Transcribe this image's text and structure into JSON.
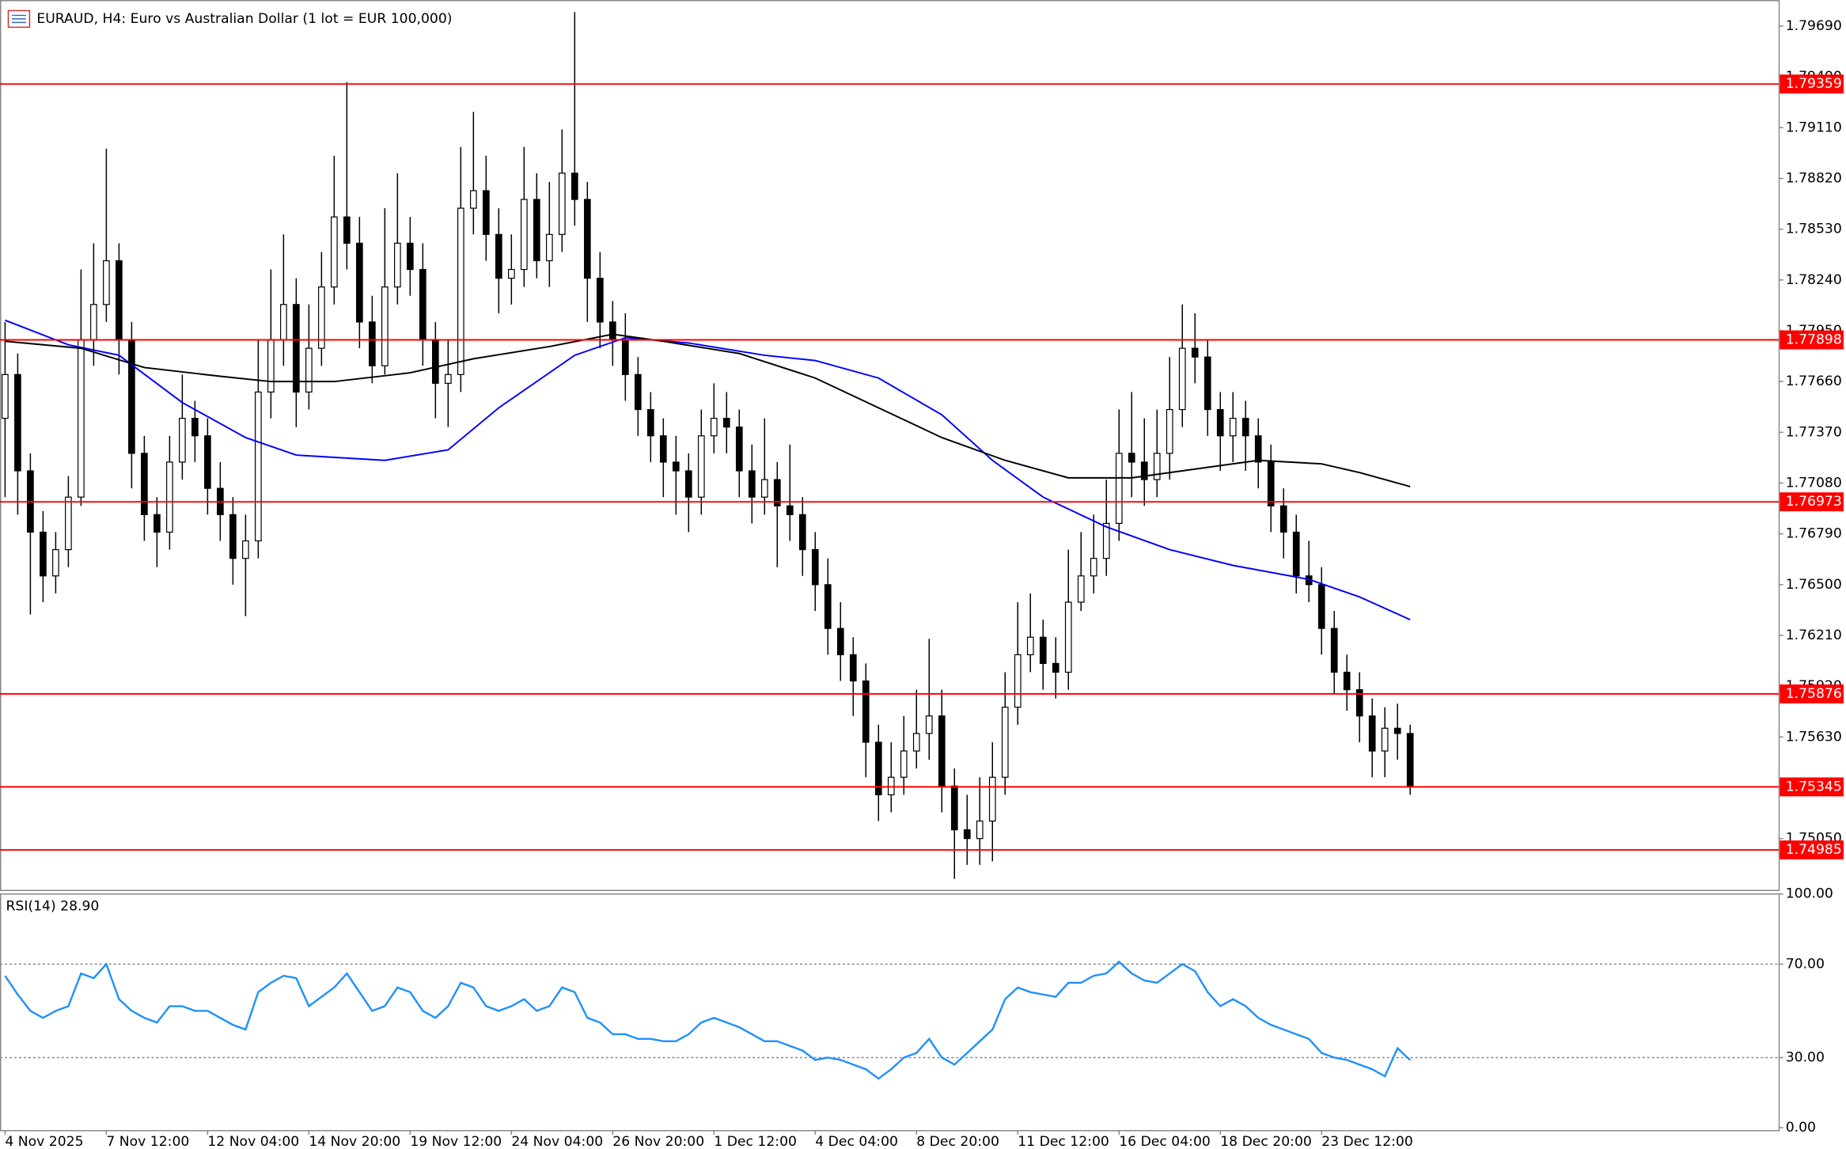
{
  "chart_data": [
    {
      "type": "candlestick",
      "title": "EURAUD, H4:  Euro vs Australian Dollar (1 lot = EUR 100,000)",
      "open": [
        1.7745,
        1.777,
        1.7715,
        1.768,
        1.7655,
        1.767,
        1.77,
        1.779,
        1.781,
        1.7835,
        1.779,
        1.7725,
        1.769,
        1.768,
        1.772,
        1.7745,
        1.7735,
        1.7705,
        1.769,
        1.7665,
        1.7675,
        1.776,
        1.779,
        1.781,
        1.776,
        1.7785,
        1.782,
        1.786,
        1.7845,
        1.78,
        1.7775,
        1.782,
        1.7845,
        1.783,
        1.779,
        1.7765,
        1.777,
        1.7865,
        1.7875,
        1.785,
        1.7825,
        1.783,
        1.787,
        1.7835,
        1.785,
        1.7885,
        1.787,
        1.7825,
        1.78,
        1.779,
        1.777,
        1.775,
        1.7735,
        1.772,
        1.7715,
        1.77,
        1.7735,
        1.7745,
        1.774,
        1.7715,
        1.77,
        1.771,
        1.7695,
        1.769,
        1.767,
        1.765,
        1.7625,
        1.761,
        1.7595,
        1.756,
        1.753,
        1.754,
        1.7555,
        1.7565,
        1.7575,
        1.7535,
        1.751,
        1.7505,
        1.7515,
        1.754,
        1.758,
        1.761,
        1.762,
        1.7605,
        1.76,
        1.764,
        1.7655,
        1.7665,
        1.7685,
        1.7725,
        1.772,
        1.771,
        1.7725,
        1.775,
        1.7785,
        1.778,
        1.775,
        1.7735,
        1.7745,
        1.7735,
        1.772,
        1.7695,
        1.768,
        1.7655,
        1.765,
        1.7625,
        1.76,
        1.759,
        1.7575,
        1.7555,
        1.7568,
        1.7565
      ],
      "high": [
        1.78,
        1.7782,
        1.7725,
        1.7692,
        1.768,
        1.7712,
        1.783,
        1.7845,
        1.7899,
        1.7845,
        1.78,
        1.7735,
        1.77,
        1.7735,
        1.777,
        1.7755,
        1.7745,
        1.772,
        1.77,
        1.769,
        1.779,
        1.783,
        1.785,
        1.7825,
        1.781,
        1.784,
        1.7895,
        1.7937,
        1.786,
        1.7815,
        1.7865,
        1.7885,
        1.786,
        1.7845,
        1.78,
        1.779,
        1.79,
        1.792,
        1.7895,
        1.7865,
        1.785,
        1.79,
        1.7885,
        1.788,
        1.791,
        1.7977,
        1.788,
        1.784,
        1.7812,
        1.7805,
        1.778,
        1.776,
        1.7745,
        1.7735,
        1.7725,
        1.775,
        1.7765,
        1.776,
        1.775,
        1.773,
        1.7745,
        1.772,
        1.773,
        1.77,
        1.768,
        1.7665,
        1.764,
        1.762,
        1.7605,
        1.757,
        1.756,
        1.7575,
        1.759,
        1.7619,
        1.759,
        1.7545,
        1.753,
        1.754,
        1.756,
        1.76,
        1.764,
        1.7645,
        1.763,
        1.762,
        1.767,
        1.768,
        1.769,
        1.771,
        1.775,
        1.776,
        1.7745,
        1.775,
        1.778,
        1.781,
        1.7805,
        1.779,
        1.776,
        1.776,
        1.7755,
        1.7745,
        1.773,
        1.7705,
        1.769,
        1.7675,
        1.766,
        1.7635,
        1.761,
        1.76,
        1.7585,
        1.758,
        1.7582,
        1.757
      ],
      "low": [
        1.77,
        1.769,
        1.7633,
        1.764,
        1.7645,
        1.766,
        1.7695,
        1.7775,
        1.78,
        1.777,
        1.7705,
        1.7675,
        1.766,
        1.767,
        1.771,
        1.772,
        1.769,
        1.7675,
        1.765,
        1.7632,
        1.7665,
        1.7745,
        1.7775,
        1.774,
        1.775,
        1.7775,
        1.781,
        1.783,
        1.7785,
        1.7765,
        1.777,
        1.781,
        1.7815,
        1.7775,
        1.7745,
        1.774,
        1.776,
        1.785,
        1.7835,
        1.7805,
        1.781,
        1.782,
        1.7825,
        1.782,
        1.784,
        1.7855,
        1.78,
        1.7785,
        1.7775,
        1.7755,
        1.7735,
        1.772,
        1.77,
        1.769,
        1.768,
        1.769,
        1.7725,
        1.7725,
        1.77,
        1.7685,
        1.769,
        1.766,
        1.7675,
        1.7655,
        1.7635,
        1.761,
        1.7595,
        1.7575,
        1.754,
        1.7515,
        1.752,
        1.753,
        1.7545,
        1.755,
        1.752,
        1.7482,
        1.749,
        1.749,
        1.7492,
        1.753,
        1.757,
        1.76,
        1.759,
        1.7585,
        1.759,
        1.7635,
        1.7645,
        1.7655,
        1.7675,
        1.77,
        1.7695,
        1.77,
        1.771,
        1.774,
        1.7765,
        1.7735,
        1.7715,
        1.772,
        1.7715,
        1.7705,
        1.768,
        1.7665,
        1.7645,
        1.764,
        1.761,
        1.7588,
        1.7578,
        1.756,
        1.754,
        1.754,
        1.755,
        1.753
      ],
      "close": [
        1.777,
        1.7715,
        1.768,
        1.7655,
        1.767,
        1.77,
        1.779,
        1.781,
        1.7835,
        1.779,
        1.7725,
        1.769,
        1.768,
        1.772,
        1.7745,
        1.7735,
        1.7705,
        1.769,
        1.7665,
        1.7675,
        1.776,
        1.779,
        1.781,
        1.776,
        1.7785,
        1.782,
        1.786,
        1.7845,
        1.78,
        1.7775,
        1.782,
        1.7845,
        1.783,
        1.779,
        1.7765,
        1.777,
        1.7865,
        1.7875,
        1.785,
        1.7825,
        1.783,
        1.787,
        1.7835,
        1.785,
        1.7885,
        1.787,
        1.7825,
        1.78,
        1.779,
        1.777,
        1.775,
        1.7735,
        1.772,
        1.7715,
        1.77,
        1.7735,
        1.7745,
        1.774,
        1.7715,
        1.77,
        1.771,
        1.7695,
        1.769,
        1.767,
        1.765,
        1.7625,
        1.761,
        1.7595,
        1.756,
        1.753,
        1.754,
        1.7555,
        1.7565,
        1.7575,
        1.7535,
        1.751,
        1.7505,
        1.7515,
        1.754,
        1.758,
        1.761,
        1.762,
        1.7605,
        1.76,
        1.764,
        1.7655,
        1.7665,
        1.7685,
        1.7725,
        1.772,
        1.771,
        1.7725,
        1.775,
        1.7785,
        1.778,
        1.775,
        1.7735,
        1.7745,
        1.7735,
        1.772,
        1.7695,
        1.768,
        1.7655,
        1.765,
        1.7625,
        1.76,
        1.759,
        1.7575,
        1.7555,
        1.7568,
        1.7565,
        1.75345
      ],
      "series": [
        {
          "color": "#0000ff",
          "x": [
            0,
            5,
            9,
            14,
            19,
            23,
            30,
            35,
            39,
            45,
            49,
            54,
            60,
            64,
            69,
            74,
            78,
            82,
            87,
            92,
            97,
            103,
            107,
            111
          ],
          "values": [
            1.7801,
            1.7787,
            1.7781,
            1.7754,
            1.7734,
            1.7724,
            1.7721,
            1.7727,
            1.7751,
            1.7781,
            1.7791,
            1.7788,
            1.7781,
            1.7778,
            1.7768,
            1.7747,
            1.7721,
            1.77,
            1.7683,
            1.767,
            1.7661,
            1.7653,
            1.7643,
            1.763
          ]
        },
        {
          "color": "#000000",
          "x": [
            0,
            6,
            11,
            17,
            21,
            26,
            32,
            37,
            43,
            48,
            52,
            58,
            64,
            69,
            74,
            79,
            84,
            89,
            93,
            99,
            104,
            107,
            111
          ],
          "values": [
            1.7789,
            1.7785,
            1.7774,
            1.7769,
            1.7766,
            1.7766,
            1.7771,
            1.7779,
            1.7786,
            1.7793,
            1.7789,
            1.7782,
            1.7768,
            1.7751,
            1.7734,
            1.7721,
            1.7711,
            1.7711,
            1.7715,
            1.7721,
            1.7719,
            1.7714,
            1.7706
          ]
        }
      ],
      "levels": [
        {
          "value": 1.79359,
          "color": "#ff0000"
        },
        {
          "value": 1.77898,
          "color": "#ff0000"
        },
        {
          "value": 1.76973,
          "color": "#ff0000"
        },
        {
          "value": 1.75876,
          "color": "#ff0000"
        },
        {
          "value": 1.75345,
          "color": "#ff0000"
        },
        {
          "value": 1.74985,
          "color": "#ff0000"
        }
      ],
      "ylim": [
        1.74757,
        1.79839
      ],
      "yticks": [
        {
          "value": 1.7969,
          "label": "1.79690"
        },
        {
          "value": 1.794,
          "label": "1.79400"
        },
        {
          "value": 1.7911,
          "label": "1.79110"
        },
        {
          "value": 1.7882,
          "label": "1.78820"
        },
        {
          "value": 1.7853,
          "label": "1.78530"
        },
        {
          "value": 1.7824,
          "label": "1.78240"
        },
        {
          "value": 1.7795,
          "label": "1.77950"
        },
        {
          "value": 1.7766,
          "label": "1.77660"
        },
        {
          "value": 1.7737,
          "label": "1.77370"
        },
        {
          "value": 1.7708,
          "label": "1.77080"
        },
        {
          "value": 1.7679,
          "label": "1.76790"
        },
        {
          "value": 1.765,
          "label": "1.76500"
        },
        {
          "value": 1.7621,
          "label": "1.76210"
        },
        {
          "value": 1.7592,
          "label": "1.75920"
        },
        {
          "value": 1.7563,
          "label": "1.75630"
        },
        {
          "value": 1.7534,
          "label": "1.75340"
        },
        {
          "value": 1.7505,
          "label": "1.75050"
        }
      ],
      "xlim": [
        -0.4,
        140.1
      ],
      "xticks": [
        {
          "value": 0,
          "label": "4 Nov 2025"
        },
        {
          "value": 8,
          "label": "7 Nov 12:00"
        },
        {
          "value": 16,
          "label": "12 Nov 04:00"
        },
        {
          "value": 24,
          "label": "14 Nov 20:00"
        },
        {
          "value": 32,
          "label": "19 Nov 12:00"
        },
        {
          "value": 40,
          "label": "24 Nov 04:00"
        },
        {
          "value": 48,
          "label": "26 Nov 20:00"
        },
        {
          "value": 56,
          "label": "1 Dec 12:00"
        },
        {
          "value": 64,
          "label": "4 Dec 04:00"
        },
        {
          "value": 72,
          "label": "8 Dec 20:00"
        },
        {
          "value": 80,
          "label": "11 Dec 12:00"
        },
        {
          "value": 88,
          "label": "16 Dec 04:00"
        },
        {
          "value": 96,
          "label": "18 Dec 20:00"
        },
        {
          "value": 104,
          "label": "23 Dec 12:00"
        }
      ]
    },
    {
      "type": "line",
      "title": "RSI(14) 28.90",
      "color": "#1e90ff",
      "values": [
        65,
        57,
        50,
        47,
        50,
        52,
        66,
        64,
        70,
        55,
        50,
        47,
        45,
        52,
        52,
        50,
        50,
        47,
        44,
        42,
        58,
        62,
        65,
        64,
        52,
        56,
        60,
        66,
        58,
        50,
        52,
        60,
        58,
        50,
        47,
        52,
        62,
        60,
        52,
        50,
        52,
        55,
        50,
        52,
        60,
        58,
        47,
        45,
        40,
        40,
        38,
        38,
        37,
        37,
        40,
        45,
        47,
        45,
        43,
        40,
        37,
        37,
        35,
        33,
        29,
        30,
        29,
        27,
        25,
        21,
        25,
        30,
        32,
        38,
        30,
        27,
        32,
        37,
        42,
        55,
        60,
        58,
        57,
        56,
        62,
        62,
        65,
        66,
        71,
        66,
        63,
        62,
        66,
        70,
        67,
        58,
        52,
        55,
        52,
        47,
        44,
        42,
        40,
        38,
        32,
        30,
        29,
        27,
        25,
        22,
        34,
        28.9
      ],
      "levels": [
        70,
        30
      ],
      "ylim": [
        0,
        100
      ],
      "yticks": [
        {
          "value": 100,
          "label": "100.00"
        },
        {
          "value": 70,
          "label": "70.00"
        },
        {
          "value": 30,
          "label": "30.00"
        },
        {
          "value": 0,
          "label": "0.00"
        }
      ],
      "xlim": [
        -0.4,
        140.1
      ]
    }
  ]
}
